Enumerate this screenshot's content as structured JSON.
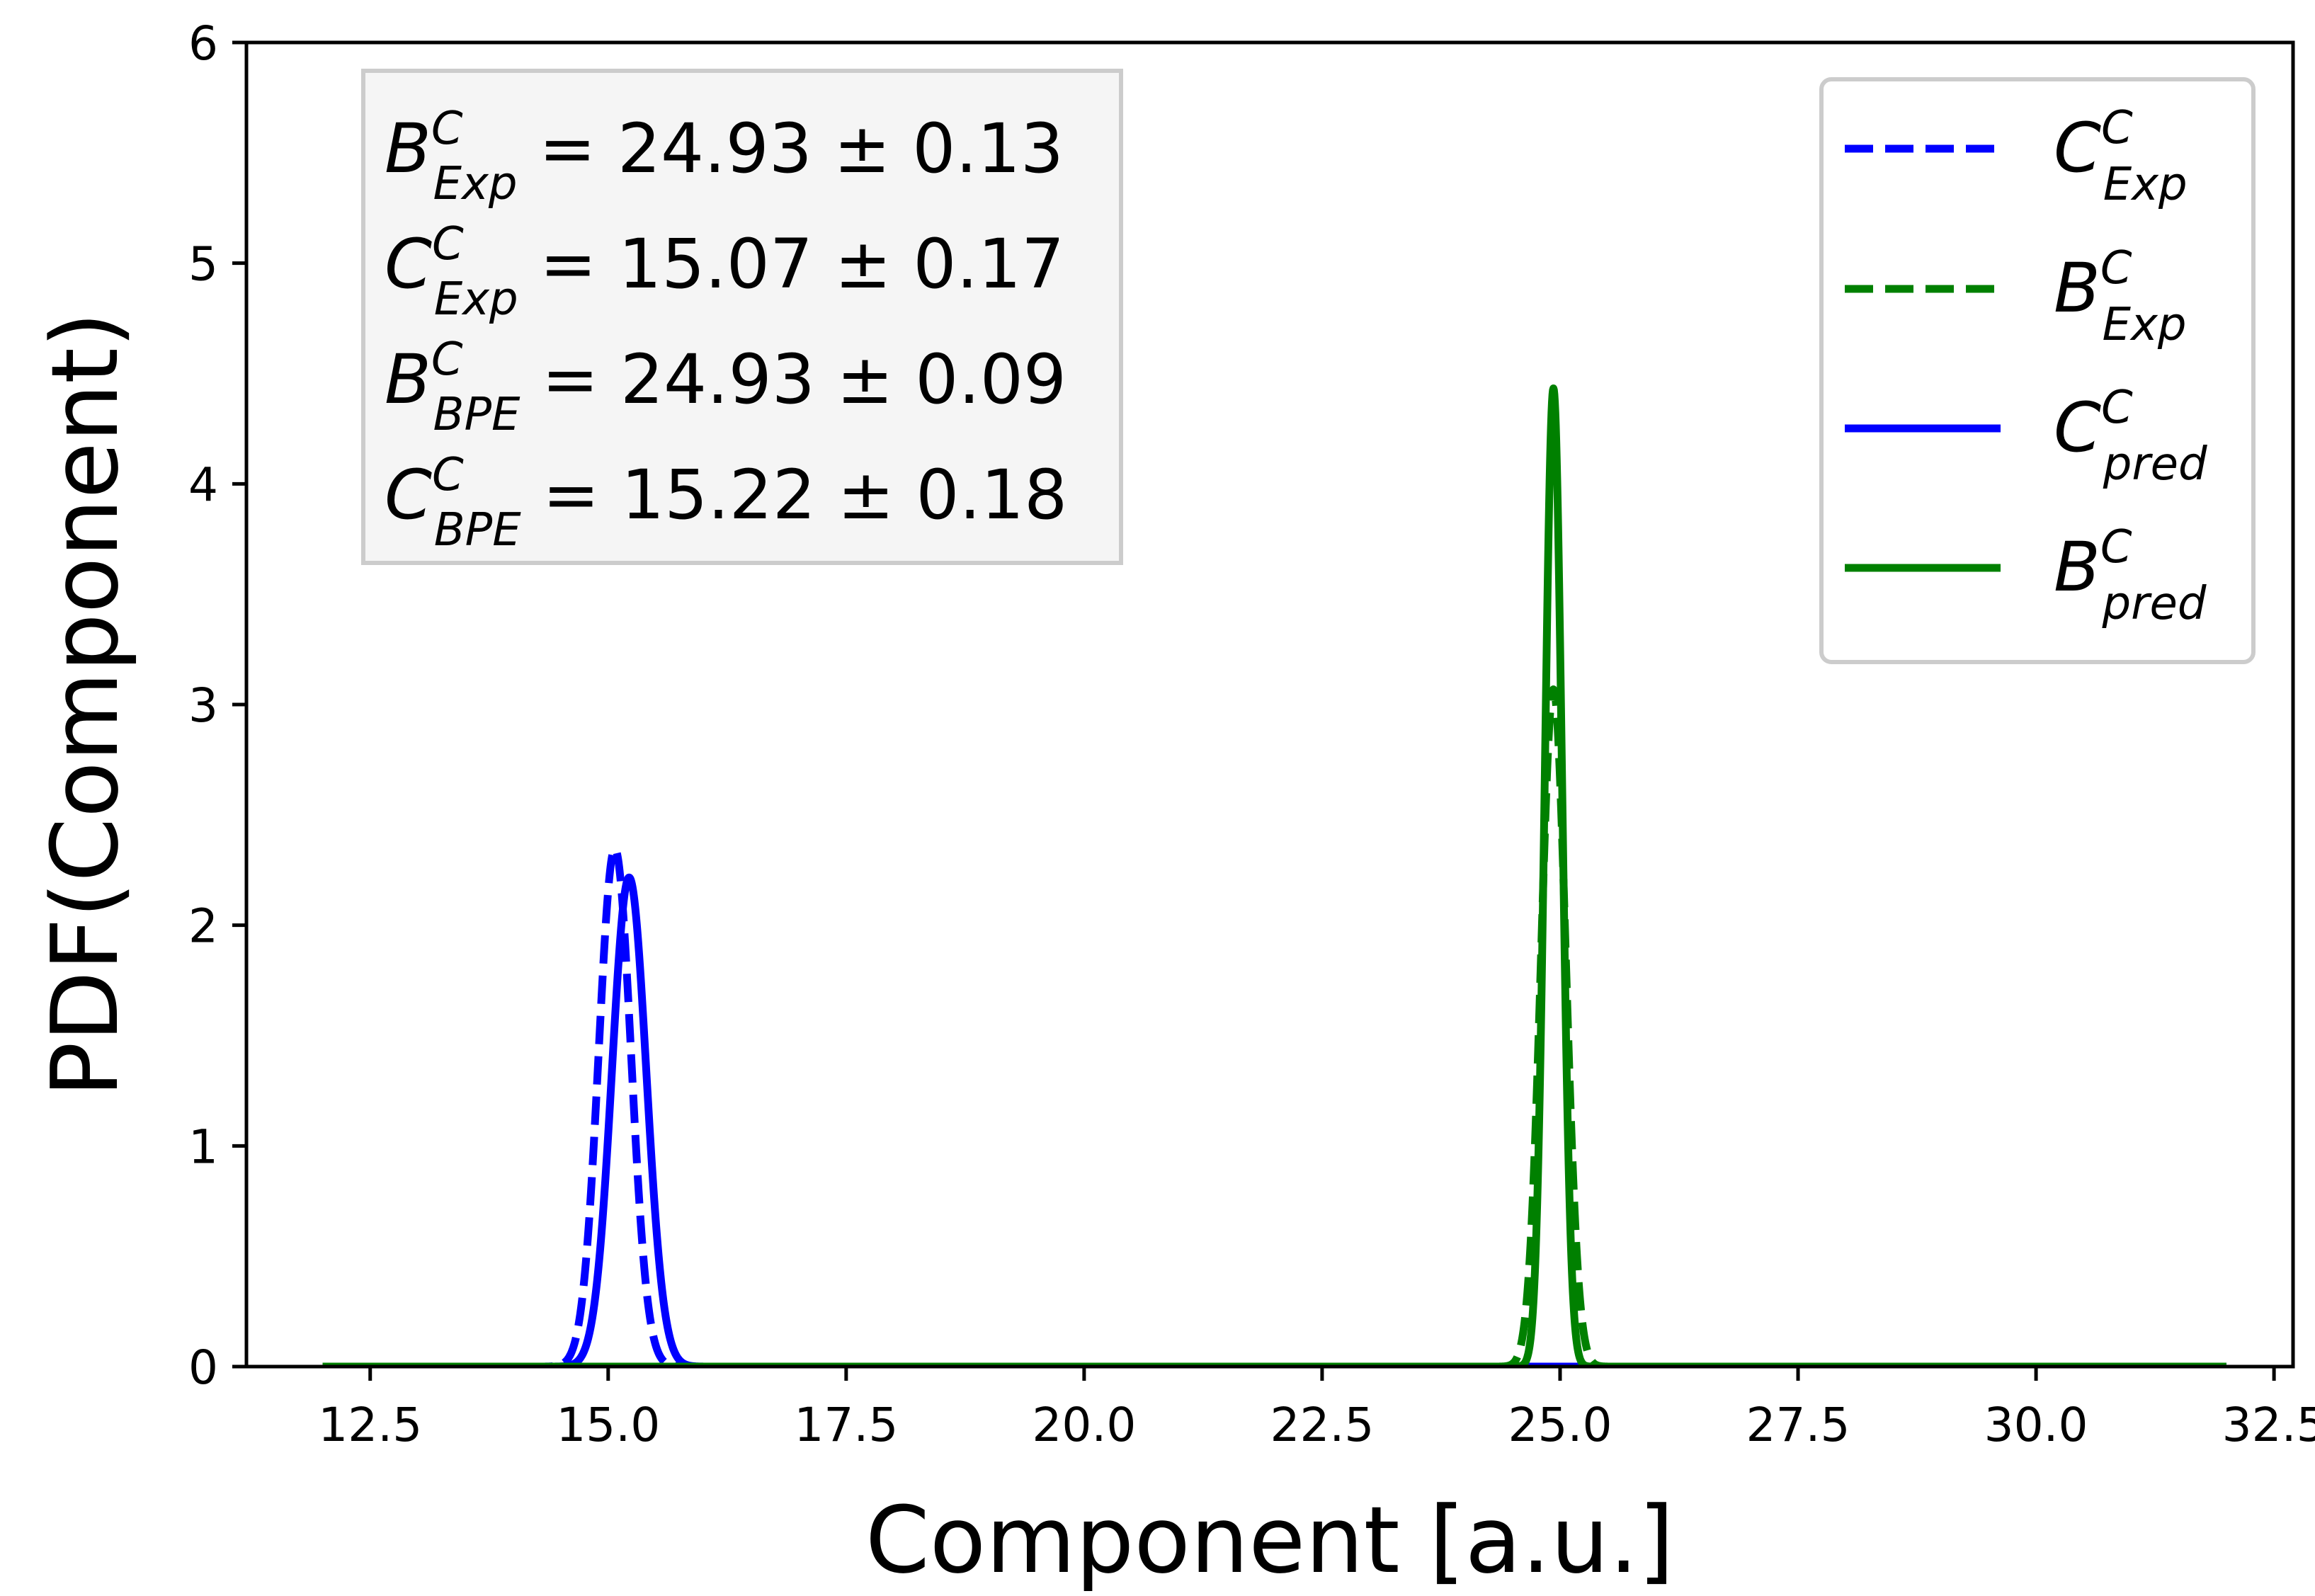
{
  "chart_data": {
    "type": "line",
    "title": "",
    "xlabel": "Component [a.u.]",
    "ylabel": "PDF(Component)",
    "xlim": [
      11.2,
      32.7
    ],
    "ylim": [
      0,
      6
    ],
    "x_range": [
      12.0,
      32.0
    ],
    "xticks": [
      "12.5",
      "15.0",
      "17.5",
      "20.0",
      "22.5",
      "25.0",
      "27.5",
      "30.0",
      "32.5"
    ],
    "yticks": [
      "0",
      "1",
      "2",
      "3",
      "4",
      "5",
      "6"
    ],
    "grid": false,
    "legend_position": "top-right",
    "series": [
      {
        "key": "c_exp",
        "label_main": "C",
        "label_sup": "C",
        "label_sub": "Exp",
        "color": "#0000ff",
        "style": "dashed",
        "mean": 15.07,
        "sd": 0.17
      },
      {
        "key": "b_exp",
        "label_main": "B",
        "label_sup": "C",
        "label_sub": "Exp",
        "color": "#008000",
        "style": "dashed",
        "mean": 24.93,
        "sd": 0.13
      },
      {
        "key": "c_pred",
        "label_main": "C",
        "label_sup": "C",
        "label_sub": "pred",
        "color": "#0000ff",
        "style": "solid",
        "mean": 15.22,
        "sd": 0.18
      },
      {
        "key": "b_pred",
        "label_main": "B",
        "label_sup": "C",
        "label_sub": "pred",
        "color": "#008000",
        "style": "solid",
        "mean": 24.93,
        "sd": 0.09
      }
    ],
    "annotation": [
      {
        "main": "B",
        "sup": "C",
        "sub": "Exp",
        "value": "24.93",
        "pm": "0.13"
      },
      {
        "main": "C",
        "sup": "C",
        "sub": "Exp",
        "value": "15.07",
        "pm": "0.17"
      },
      {
        "main": "B",
        "sup": "C",
        "sub": "BPE",
        "value": "24.93",
        "pm": "0.09"
      },
      {
        "main": "C",
        "sup": "C",
        "sub": "BPE",
        "value": "15.22",
        "pm": "0.18"
      }
    ]
  }
}
